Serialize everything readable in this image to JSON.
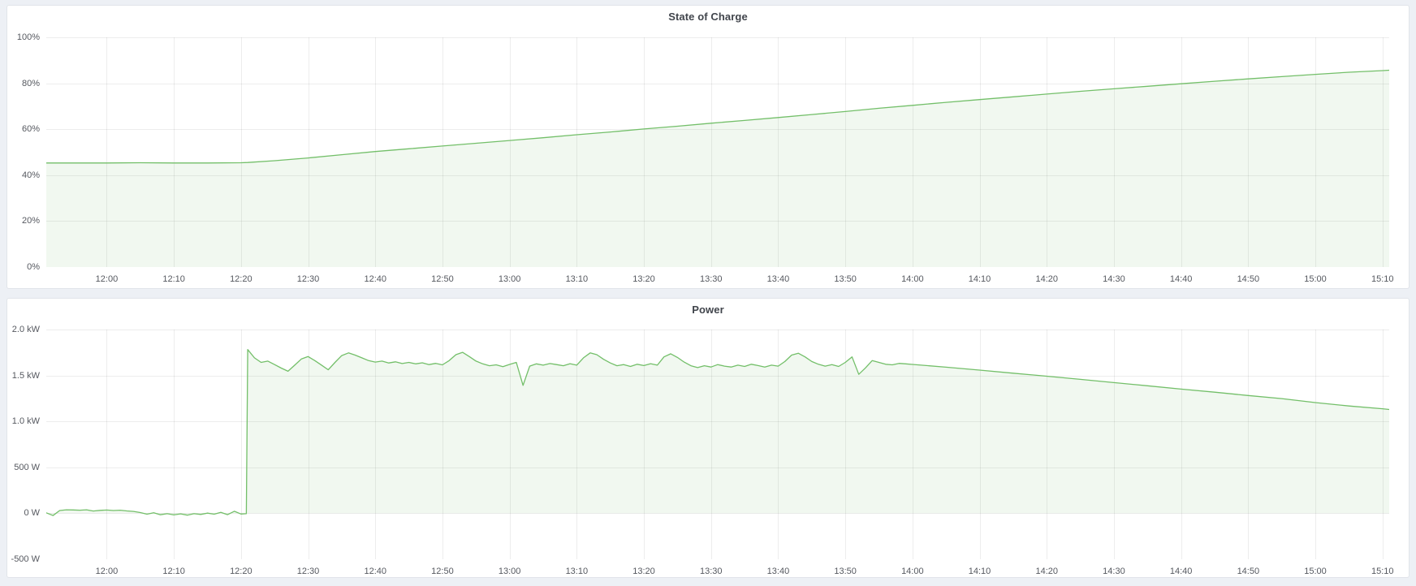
{
  "page": {
    "background": "#edf0f5",
    "panel_background": "#ffffff",
    "accent_green": "#73BF69"
  },
  "chart_data": [
    {
      "type": "area",
      "title": "State of Charge",
      "ylabel": "percent",
      "xlabel": "time",
      "legend": "none",
      "grid": true,
      "line_color": "#73BF69",
      "fill_color": "rgba(115,191,105,0.10)",
      "grid_color": "rgba(0,0,0,0.07)",
      "x_range": [
        711,
        911
      ],
      "y_range": [
        0,
        100
      ],
      "fill_to": 0,
      "x_ticks": [
        {
          "t": 720,
          "label": "12:00"
        },
        {
          "t": 730,
          "label": "12:10"
        },
        {
          "t": 740,
          "label": "12:20"
        },
        {
          "t": 750,
          "label": "12:30"
        },
        {
          "t": 760,
          "label": "12:40"
        },
        {
          "t": 770,
          "label": "12:50"
        },
        {
          "t": 780,
          "label": "13:00"
        },
        {
          "t": 790,
          "label": "13:10"
        },
        {
          "t": 800,
          "label": "13:20"
        },
        {
          "t": 810,
          "label": "13:30"
        },
        {
          "t": 820,
          "label": "13:40"
        },
        {
          "t": 830,
          "label": "13:50"
        },
        {
          "t": 840,
          "label": "14:00"
        },
        {
          "t": 850,
          "label": "14:10"
        },
        {
          "t": 860,
          "label": "14:20"
        },
        {
          "t": 870,
          "label": "14:30"
        },
        {
          "t": 880,
          "label": "14:40"
        },
        {
          "t": 890,
          "label": "14:50"
        },
        {
          "t": 900,
          "label": "15:00"
        },
        {
          "t": 910,
          "label": "15:10"
        }
      ],
      "y_ticks": [
        {
          "value": 0,
          "label": "0%"
        },
        {
          "value": 20,
          "label": "20%"
        },
        {
          "value": 40,
          "label": "40%"
        },
        {
          "value": 60,
          "label": "60%"
        },
        {
          "value": 80,
          "label": "80%"
        },
        {
          "value": 100,
          "label": "100%"
        }
      ],
      "points": [
        [
          711,
          45.3
        ],
        [
          715,
          45.3
        ],
        [
          720,
          45.3
        ],
        [
          725,
          45.4
        ],
        [
          730,
          45.3
        ],
        [
          735,
          45.3
        ],
        [
          740,
          45.4
        ],
        [
          741,
          45.5
        ],
        [
          745,
          46.3
        ],
        [
          750,
          47.5
        ],
        [
          755,
          48.9
        ],
        [
          760,
          50.3
        ],
        [
          765,
          51.5
        ],
        [
          770,
          52.7
        ],
        [
          775,
          53.9
        ],
        [
          780,
          55.1
        ],
        [
          785,
          56.3
        ],
        [
          790,
          57.6
        ],
        [
          795,
          58.8
        ],
        [
          800,
          60.1
        ],
        [
          805,
          61.3
        ],
        [
          810,
          62.6
        ],
        [
          815,
          63.8
        ],
        [
          820,
          65.1
        ],
        [
          825,
          66.4
        ],
        [
          830,
          67.7
        ],
        [
          835,
          69.1
        ],
        [
          840,
          70.4
        ],
        [
          845,
          71.7
        ],
        [
          850,
          72.9
        ],
        [
          855,
          74.1
        ],
        [
          860,
          75.3
        ],
        [
          865,
          76.5
        ],
        [
          870,
          77.6
        ],
        [
          875,
          78.7
        ],
        [
          880,
          79.8
        ],
        [
          885,
          80.9
        ],
        [
          890,
          81.9
        ],
        [
          895,
          82.9
        ],
        [
          900,
          83.9
        ],
        [
          905,
          84.8
        ],
        [
          910,
          85.5
        ],
        [
          911,
          85.7
        ]
      ]
    },
    {
      "type": "area",
      "title": "Power",
      "ylabel": "watt",
      "xlabel": "time",
      "legend": "none",
      "grid": true,
      "line_color": "#73BF69",
      "fill_color": "rgba(115,191,105,0.10)",
      "grid_color": "rgba(0,0,0,0.07)",
      "x_range": [
        711,
        911
      ],
      "y_range": [
        -500,
        2000
      ],
      "fill_to": 0,
      "x_ticks": [
        {
          "t": 720,
          "label": "12:00"
        },
        {
          "t": 730,
          "label": "12:10"
        },
        {
          "t": 740,
          "label": "12:20"
        },
        {
          "t": 750,
          "label": "12:30"
        },
        {
          "t": 760,
          "label": "12:40"
        },
        {
          "t": 770,
          "label": "12:50"
        },
        {
          "t": 780,
          "label": "13:00"
        },
        {
          "t": 790,
          "label": "13:10"
        },
        {
          "t": 800,
          "label": "13:20"
        },
        {
          "t": 810,
          "label": "13:30"
        },
        {
          "t": 820,
          "label": "13:40"
        },
        {
          "t": 830,
          "label": "13:50"
        },
        {
          "t": 840,
          "label": "14:00"
        },
        {
          "t": 850,
          "label": "14:10"
        },
        {
          "t": 860,
          "label": "14:20"
        },
        {
          "t": 870,
          "label": "14:30"
        },
        {
          "t": 880,
          "label": "14:40"
        },
        {
          "t": 890,
          "label": "14:50"
        },
        {
          "t": 900,
          "label": "15:00"
        },
        {
          "t": 910,
          "label": "15:10"
        }
      ],
      "y_ticks": [
        {
          "value": -500,
          "label": "-500 W"
        },
        {
          "value": 0,
          "label": "0 W"
        },
        {
          "value": 500,
          "label": "500 W"
        },
        {
          "value": 1000,
          "label": "1.0 kW"
        },
        {
          "value": 1500,
          "label": "1.5 kW"
        },
        {
          "value": 2000,
          "label": "2.0 kW"
        }
      ],
      "points": [
        [
          711,
          5
        ],
        [
          712,
          -25
        ],
        [
          713,
          30
        ],
        [
          714,
          38
        ],
        [
          715,
          36
        ],
        [
          716,
          34
        ],
        [
          717,
          38
        ],
        [
          718,
          25
        ],
        [
          719,
          32
        ],
        [
          720,
          35
        ],
        [
          721,
          30
        ],
        [
          722,
          34
        ],
        [
          723,
          26
        ],
        [
          724,
          20
        ],
        [
          725,
          8
        ],
        [
          726,
          -10
        ],
        [
          727,
          6
        ],
        [
          728,
          -16
        ],
        [
          729,
          -4
        ],
        [
          730,
          -18
        ],
        [
          731,
          -6
        ],
        [
          732,
          -20
        ],
        [
          733,
          -4
        ],
        [
          734,
          -12
        ],
        [
          735,
          2
        ],
        [
          736,
          -10
        ],
        [
          737,
          10
        ],
        [
          738,
          -15
        ],
        [
          739,
          22
        ],
        [
          740,
          -8
        ],
        [
          740.8,
          -4
        ],
        [
          741,
          1782
        ],
        [
          742,
          1692
        ],
        [
          743,
          1642
        ],
        [
          744,
          1656
        ],
        [
          745,
          1618
        ],
        [
          746,
          1580
        ],
        [
          747,
          1546
        ],
        [
          748,
          1612
        ],
        [
          749,
          1680
        ],
        [
          750,
          1706
        ],
        [
          751,
          1662
        ],
        [
          752,
          1612
        ],
        [
          753,
          1562
        ],
        [
          754,
          1642
        ],
        [
          755,
          1716
        ],
        [
          756,
          1746
        ],
        [
          757,
          1722
        ],
        [
          758,
          1692
        ],
        [
          759,
          1662
        ],
        [
          760,
          1646
        ],
        [
          761,
          1656
        ],
        [
          762,
          1636
        ],
        [
          763,
          1648
        ],
        [
          764,
          1630
        ],
        [
          765,
          1642
        ],
        [
          766,
          1626
        ],
        [
          767,
          1638
        ],
        [
          768,
          1618
        ],
        [
          769,
          1632
        ],
        [
          770,
          1616
        ],
        [
          771,
          1662
        ],
        [
          772,
          1726
        ],
        [
          773,
          1752
        ],
        [
          774,
          1706
        ],
        [
          775,
          1656
        ],
        [
          776,
          1626
        ],
        [
          777,
          1606
        ],
        [
          778,
          1616
        ],
        [
          779,
          1596
        ],
        [
          780,
          1620
        ],
        [
          781,
          1642
        ],
        [
          782,
          1392
        ],
        [
          783,
          1602
        ],
        [
          784,
          1626
        ],
        [
          785,
          1612
        ],
        [
          786,
          1630
        ],
        [
          787,
          1618
        ],
        [
          788,
          1606
        ],
        [
          789,
          1628
        ],
        [
          790,
          1612
        ],
        [
          791,
          1692
        ],
        [
          792,
          1746
        ],
        [
          793,
          1726
        ],
        [
          794,
          1676
        ],
        [
          795,
          1636
        ],
        [
          796,
          1606
        ],
        [
          797,
          1618
        ],
        [
          798,
          1598
        ],
        [
          799,
          1622
        ],
        [
          800,
          1608
        ],
        [
          801,
          1628
        ],
        [
          802,
          1612
        ],
        [
          803,
          1702
        ],
        [
          804,
          1736
        ],
        [
          805,
          1696
        ],
        [
          806,
          1646
        ],
        [
          807,
          1606
        ],
        [
          808,
          1586
        ],
        [
          809,
          1606
        ],
        [
          810,
          1592
        ],
        [
          811,
          1618
        ],
        [
          812,
          1602
        ],
        [
          813,
          1592
        ],
        [
          814,
          1612
        ],
        [
          815,
          1598
        ],
        [
          816,
          1622
        ],
        [
          817,
          1608
        ],
        [
          818,
          1592
        ],
        [
          819,
          1612
        ],
        [
          820,
          1602
        ],
        [
          821,
          1652
        ],
        [
          822,
          1722
        ],
        [
          823,
          1742
        ],
        [
          824,
          1702
        ],
        [
          825,
          1652
        ],
        [
          826,
          1622
        ],
        [
          827,
          1602
        ],
        [
          828,
          1618
        ],
        [
          829,
          1598
        ],
        [
          830,
          1642
        ],
        [
          831,
          1702
        ],
        [
          832,
          1512
        ],
        [
          833,
          1582
        ],
        [
          834,
          1662
        ],
        [
          835,
          1642
        ],
        [
          836,
          1622
        ],
        [
          837,
          1616
        ],
        [
          838,
          1632
        ],
        [
          839,
          1626
        ],
        [
          840,
          1620
        ],
        [
          845,
          1590
        ],
        [
          850,
          1558
        ],
        [
          855,
          1525
        ],
        [
          860,
          1492
        ],
        [
          865,
          1458
        ],
        [
          870,
          1422
        ],
        [
          875,
          1388
        ],
        [
          880,
          1352
        ],
        [
          885,
          1318
        ],
        [
          890,
          1282
        ],
        [
          895,
          1248
        ],
        [
          900,
          1205
        ],
        [
          905,
          1168
        ],
        [
          910,
          1138
        ],
        [
          911,
          1130
        ]
      ]
    }
  ]
}
